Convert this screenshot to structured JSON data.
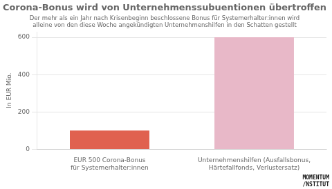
{
  "chart_data": {
    "type": "bar",
    "title": "Corona-Bonus wird von Unternehmenssubuentionen übertroffen",
    "subtitle": [
      "Der mehr als ein Jahr nach Krisenbeginn beschlossene Bonus für Systemerhalter:innen wird",
      "alleine von den diese Woche angekündigten Unternehmenshilfen in den Schatten gestellt"
    ],
    "categories": [
      "EUR 500 Corona-Bonus\nfür Systemerhalter:innen",
      "Unternehmenshilfen (Ausfallsbonus,\nHärtefallfonds, Verlustersatz)"
    ],
    "values": [
      100,
      600
    ],
    "colors": [
      "#e0614f",
      "#e8b8c8"
    ],
    "ylabel": "In EUR Mio.",
    "ylim": [
      0,
      630
    ],
    "yticks": [
      0,
      200,
      400,
      600
    ],
    "grid": true,
    "annotations": [
      "MOMENTUM",
      "/NSTITUT"
    ]
  }
}
